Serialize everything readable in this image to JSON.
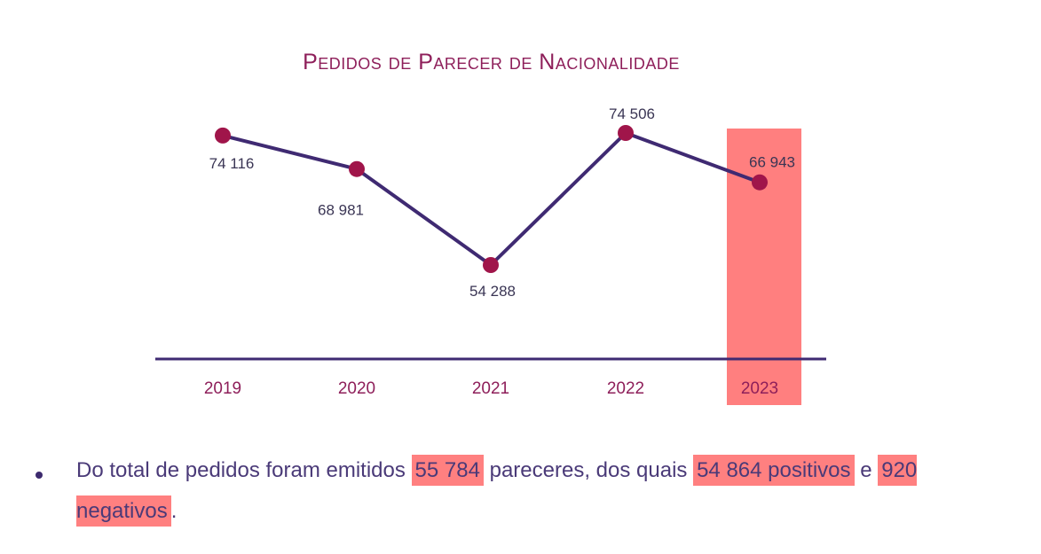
{
  "title": "Pedidos de Parecer de Nacionalidade",
  "chart_data": {
    "type": "line",
    "title": "Pedidos de Parecer de Nacionalidade",
    "categories": [
      "2019",
      "2020",
      "2021",
      "2022",
      "2023"
    ],
    "values": [
      74116,
      68981,
      54288,
      74506,
      66943
    ],
    "value_labels": [
      "74 116",
      "68 981",
      "54 288",
      "74 506",
      "66 943"
    ],
    "highlighted_category": "2023",
    "grid": false,
    "legend": "none",
    "colors": {
      "line": "#3f2a72",
      "point": "#a0154a",
      "axis": "#3f2a72",
      "tick_label": "#8e1f5a",
      "data_label": "#3a3554",
      "highlight": "#ff7f7f"
    }
  },
  "caption": {
    "part1": "Do total de pedidos foram emitidos ",
    "total": "55 784",
    "part2": " pareceres, dos quais ",
    "positive": "54 864 positivos",
    "part3": " e ",
    "negative": "920 negativos",
    "part4": "."
  }
}
